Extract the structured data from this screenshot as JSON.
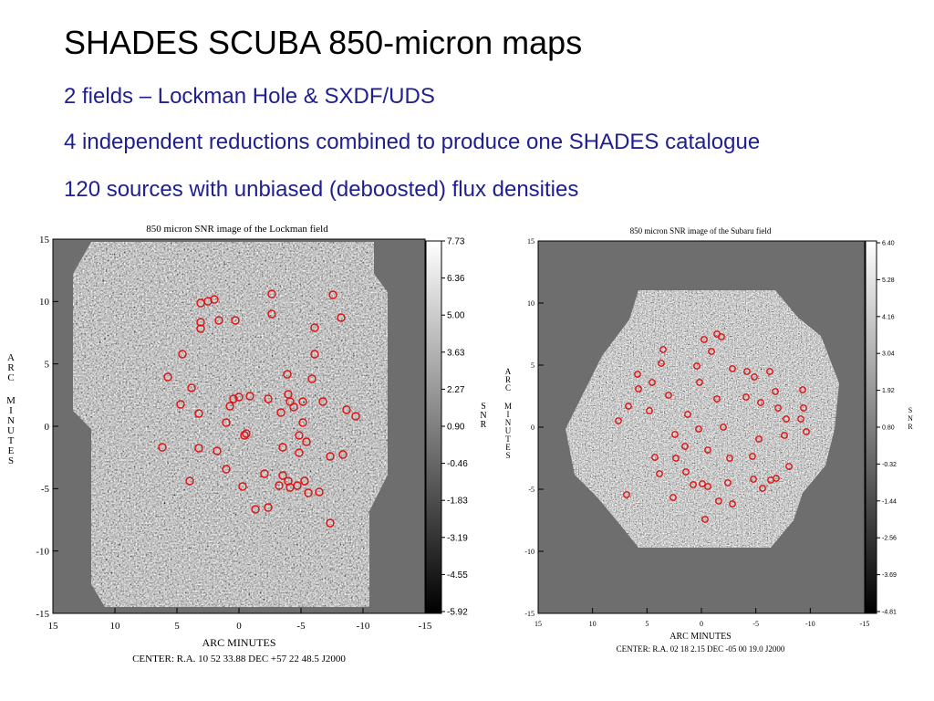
{
  "slide": {
    "title": "SHADES SCUBA 850-micron maps",
    "bullets": [
      "2 fields – Lockman Hole & SXDF/UDS",
      "4 independent reductions combined to produce one SHADES catalogue",
      "120 sources with unbiased (deboosted) flux densities"
    ]
  },
  "lockman": {
    "title": "850 micron SNR image of the Lockman field",
    "xlabel": "ARC MINUTES",
    "ylabel": "ARC MINUTES",
    "center": "CENTER:  R.A. 10 52 33.88    DEC +57 22 48.5   J2000",
    "x_ticks": [
      "15",
      "10",
      "5",
      "0",
      "-5",
      "-10",
      "-15"
    ],
    "y_ticks": [
      "15",
      "10",
      "5",
      "0",
      "-5",
      "-10",
      "-15"
    ],
    "colorbar_label": "SNR",
    "colorbar_ticks": [
      "7.73",
      "6.36",
      "5.00",
      "3.63",
      "2.27",
      "0.90",
      "-0.46",
      "-1.83",
      "-3.19",
      "-4.55",
      "-5.92"
    ]
  },
  "subaru": {
    "title": "850 micron SNR image of the Subaru field",
    "xlabel": "ARC MINUTES",
    "ylabel": "ARC MINUTES",
    "center": "CENTER:  R.A. 02 18  2.15   DEC -05 00 19.0  J2000",
    "x_ticks": [
      "15",
      "10",
      "5",
      "0",
      "-5",
      "-10",
      "-15"
    ],
    "y_ticks": [
      "15",
      "10",
      "5",
      "0",
      "-5",
      "-10",
      "-15"
    ],
    "colorbar_label": "SNR",
    "colorbar_ticks": [
      "6.40",
      "5.28",
      "4.16",
      "3.04",
      "1.92",
      "0.80",
      "-0.32",
      "-1.44",
      "-2.56",
      "-3.69",
      "-4.81"
    ]
  },
  "colors": {
    "title": "#000000",
    "bullets": "#1f1f8f",
    "source_marker": "#e01010",
    "background_map": "#6e6e6e"
  }
}
